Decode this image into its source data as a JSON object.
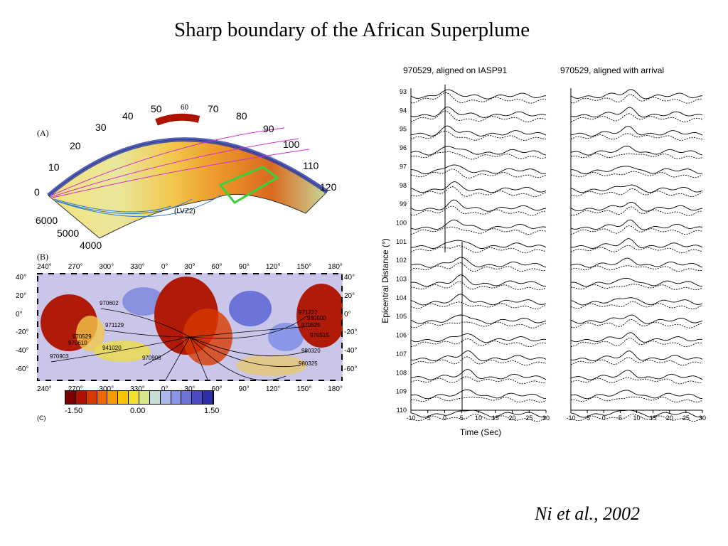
{
  "slide": {
    "title": "Sharp boundary of the African Superplume",
    "citation": "Ni et al., 2002"
  },
  "panel_a": {
    "label": "(A)",
    "angle_ticks": [
      "0",
      "10",
      "20",
      "30",
      "40",
      "50",
      "60",
      "70",
      "80",
      "90",
      "100",
      "110",
      "120"
    ],
    "depth_ticks": [
      "6000",
      "5000",
      "4000"
    ],
    "annotation": "(LVZ2)"
  },
  "panel_b": {
    "label": "(B)",
    "lon_ticks": [
      "240°",
      "270°",
      "300°",
      "330°",
      "0°",
      "30°",
      "60°",
      "90°",
      "120°",
      "150°",
      "180°"
    ],
    "lat_ticks": [
      "40°",
      "20°",
      "0°",
      "-20°",
      "-40°",
      "-60°"
    ],
    "events": [
      "970602",
      "971129",
      "970529",
      "970610",
      "941020",
      "970903",
      "970908",
      "971222",
      "980000",
      "970525",
      "970515",
      "980320",
      "980325"
    ],
    "colorbar": {
      "min": "-1.50",
      "mid": "0.00",
      "max": "1.50",
      "colors": [
        "#7a0000",
        "#b01200",
        "#d83a00",
        "#ee6a00",
        "#f59a00",
        "#f5c200",
        "#f2e030",
        "#d7e88a",
        "#c6ddd4",
        "#a8b8ea",
        "#8a96e6",
        "#6c72d8",
        "#4b4cc4",
        "#2f2da8"
      ]
    },
    "next_label": "(C)"
  },
  "waveforms": {
    "left_title": "970529, aligned on IASP91",
    "right_title": "970529, aligned with arrival",
    "ylabel": "Epicentral Distance (°)",
    "xlabel": "Time (Sec)",
    "distances": [
      93,
      94,
      95,
      96,
      97,
      98,
      99,
      100,
      101,
      102,
      103,
      104,
      105,
      106,
      107,
      108,
      109,
      110
    ],
    "time_ticks": [
      "-10",
      "-5",
      "0",
      "5",
      "10",
      "15",
      "20",
      "25",
      "30"
    ]
  }
}
